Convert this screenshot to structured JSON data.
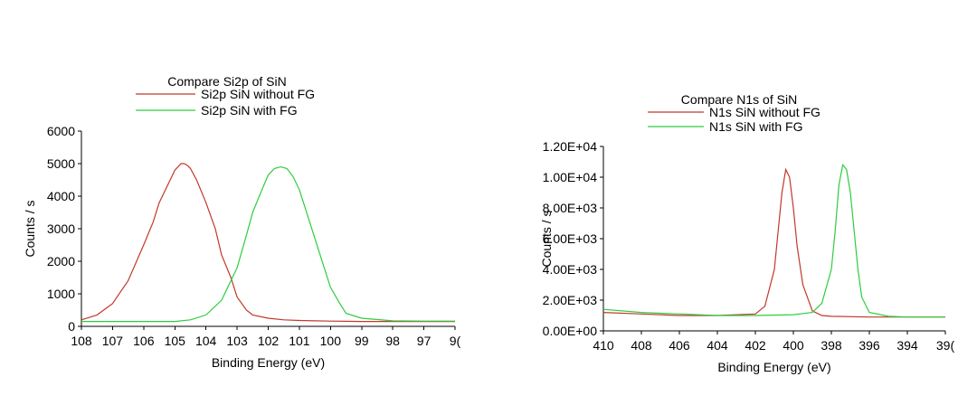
{
  "chart_data": [
    {
      "type": "line",
      "title": "Compare Si2p of SiN",
      "xlabel": "Binding Energy (eV)",
      "ylabel": "Counts / s",
      "xlim": [
        108,
        96
      ],
      "ylim": [
        0,
        6000
      ],
      "xticks": [
        "108",
        "107",
        "106",
        "105",
        "104",
        "103",
        "102",
        "101",
        "100",
        "99",
        "98",
        "97",
        "9("
      ],
      "yticks": [
        "0",
        "1000",
        "2000",
        "3000",
        "4000",
        "5000",
        "6000"
      ],
      "grid": false,
      "legend_position": "top",
      "series": [
        {
          "name": "Si2p SiN without FG",
          "color": "#c0392b",
          "x": [
            108,
            107.5,
            107,
            106.5,
            106,
            105.7,
            105.5,
            105.2,
            105,
            104.8,
            104.7,
            104.6,
            104.5,
            104.3,
            104,
            103.7,
            103.5,
            103.2,
            103,
            102.7,
            102.5,
            102,
            101.5,
            101,
            100.5,
            100,
            99,
            98,
            97,
            96
          ],
          "values": [
            200,
            350,
            700,
            1400,
            2500,
            3200,
            3800,
            4400,
            4800,
            5000,
            5000,
            4950,
            4850,
            4500,
            3800,
            3000,
            2200,
            1500,
            900,
            500,
            350,
            250,
            200,
            180,
            170,
            160,
            150,
            150,
            150,
            150
          ]
        },
        {
          "name": "Si2p SiN with FG",
          "color": "#2ecc40",
          "x": [
            108,
            107,
            106,
            105,
            104.5,
            104,
            103.5,
            103,
            102.7,
            102.5,
            102.2,
            102,
            101.8,
            101.6,
            101.4,
            101.2,
            101,
            100.8,
            100.5,
            100.2,
            100,
            99.7,
            99.5,
            99,
            98,
            97,
            96
          ],
          "values": [
            150,
            150,
            150,
            150,
            200,
            350,
            800,
            1800,
            2800,
            3500,
            4200,
            4650,
            4850,
            4900,
            4850,
            4600,
            4200,
            3600,
            2700,
            1800,
            1200,
            700,
            400,
            250,
            170,
            160,
            160
          ]
        }
      ]
    },
    {
      "type": "line",
      "title": "Compare N1s of SiN",
      "xlabel": "Binding Energy (eV)",
      "ylabel": "Counts / s",
      "xlim": [
        410,
        392
      ],
      "ylim": [
        0,
        12000
      ],
      "xticks": [
        "410",
        "408",
        "406",
        "404",
        "402",
        "400",
        "398",
        "396",
        "394",
        "39("
      ],
      "yticks": [
        "0.00E+00",
        "2.00E+03",
        "4.00E+03",
        "6.00E+03",
        "8.00E+03",
        "1.00E+04",
        "1.20E+04"
      ],
      "grid": false,
      "legend_position": "top",
      "series": [
        {
          "name": "N1s SiN without FG",
          "color": "#c0392b",
          "x": [
            410,
            408,
            406,
            404,
            402,
            401.5,
            401,
            400.8,
            400.6,
            400.4,
            400.2,
            400,
            399.8,
            399.5,
            399,
            398.5,
            398,
            396,
            394,
            392
          ],
          "values": [
            1200,
            1100,
            1000,
            1000,
            1100,
            1600,
            4000,
            6500,
            9000,
            10500,
            10000,
            8000,
            5500,
            3000,
            1300,
            1000,
            950,
            900,
            900,
            900
          ]
        },
        {
          "name": "N1s SiN with FG",
          "color": "#2ecc40",
          "x": [
            410,
            408,
            406,
            404,
            402,
            400,
            399,
            398.5,
            398,
            397.8,
            397.6,
            397.4,
            397.2,
            397,
            396.8,
            396.6,
            396.4,
            396,
            395,
            394,
            392
          ],
          "values": [
            1400,
            1200,
            1100,
            1000,
            1000,
            1050,
            1200,
            1800,
            4000,
            6500,
            9500,
            10800,
            10500,
            9000,
            6500,
            4000,
            2200,
            1200,
            950,
            900,
            900
          ]
        }
      ]
    }
  ]
}
